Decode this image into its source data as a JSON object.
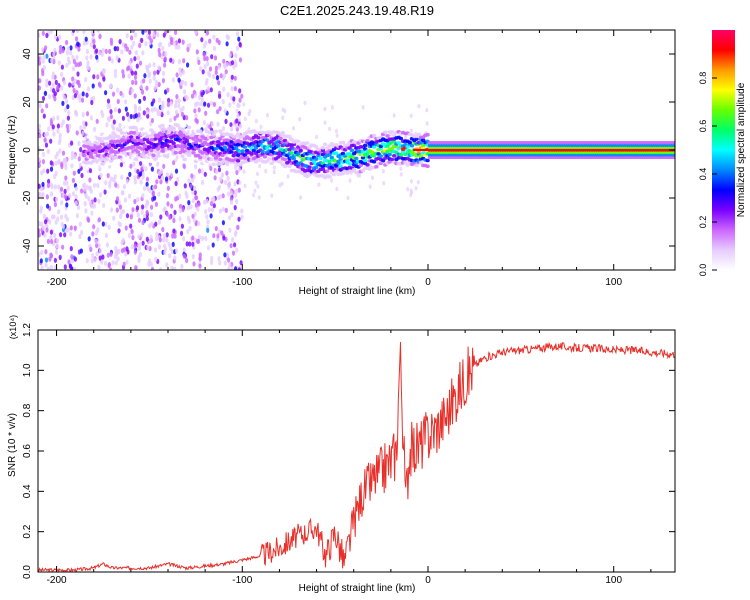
{
  "title": "C2E1.2025.243.19.48.R19",
  "colors": {
    "snr_line": "#e8302a",
    "axis": "#000000",
    "background": "#ffffff",
    "colormap": [
      "#ffffff",
      "#e6ccff",
      "#cc66ff",
      "#7a00ff",
      "#0000ff",
      "#0088ff",
      "#00ffff",
      "#00ff66",
      "#66ff00",
      "#ffff00",
      "#ff9900",
      "#ff0000",
      "#ff0066"
    ]
  },
  "chart_data": [
    {
      "type": "heatmap",
      "name": "spectrogram",
      "xlabel": "Height of straight line (km)",
      "ylabel": "Frequency (Hz)",
      "xlim": [
        -210,
        133
      ],
      "ylim": [
        -50,
        50
      ],
      "xticks": [
        -200,
        -100,
        0,
        100
      ],
      "xtick_labels": [
        "-200",
        "-100",
        "0",
        "100"
      ],
      "yticks": [
        -40,
        -20,
        0,
        20,
        40
      ],
      "ytick_labels": [
        "-40",
        "-20",
        "0",
        "20",
        "40"
      ],
      "colorbar": {
        "label": "Normalized spectral amplitude",
        "range": [
          0,
          1
        ],
        "ticks": [
          0.0,
          0.2,
          0.4,
          0.6,
          0.8
        ],
        "tick_labels": [
          "0.0",
          "0.2",
          "0.4",
          "0.6",
          "0.8"
        ]
      },
      "ridge": {
        "description_x": [
          -180,
          -160,
          -150,
          -140,
          -130,
          -120,
          -110,
          -100,
          -90,
          -80,
          -70,
          -60,
          -50,
          -40,
          -30,
          -20,
          -10,
          0,
          50,
          133
        ],
        "freq_hz": [
          -1,
          3,
          2,
          4,
          3,
          1,
          1,
          0,
          2,
          1,
          -3,
          -5,
          -4,
          -3,
          -1,
          1,
          0,
          0,
          0,
          0
        ],
        "amplitude": [
          0.25,
          0.3,
          0.3,
          0.35,
          0.3,
          0.3,
          0.4,
          0.45,
          0.5,
          0.55,
          0.6,
          0.62,
          0.65,
          0.7,
          0.75,
          0.8,
          0.85,
          0.95,
          0.95,
          0.95
        ]
      }
    },
    {
      "type": "line",
      "name": "snr",
      "xlabel": "Height of straight line (km)",
      "ylabel": "SNR (10 * v/v)",
      "y_multiplier": "(x10⁴)",
      "xlim": [
        -210,
        133
      ],
      "ylim": [
        0,
        1.2
      ],
      "xticks": [
        -200,
        -100,
        0,
        100
      ],
      "xtick_labels": [
        "-200",
        "-100",
        "0",
        "100"
      ],
      "yticks": [
        0.0,
        0.2,
        0.4,
        0.6,
        0.8,
        1.0,
        1.2
      ],
      "ytick_labels": [
        "0.0",
        "0.2",
        "0.4",
        "0.6",
        "0.8",
        "1.0",
        "1.2"
      ],
      "series": [
        {
          "name": "SNR",
          "x": [
            -210,
            -190,
            -180,
            -175,
            -170,
            -160,
            -150,
            -140,
            -130,
            -120,
            -110,
            -100,
            -90,
            -80,
            -75,
            -70,
            -65,
            -60,
            -55,
            -50,
            -45,
            -40,
            -35,
            -30,
            -25,
            -20,
            -17,
            -15,
            -12,
            -10,
            -5,
            0,
            5,
            10,
            15,
            20,
            25,
            30,
            40,
            50,
            60,
            70,
            80,
            90,
            100,
            110,
            120,
            133
          ],
          "y": [
            0.01,
            0.01,
            0.02,
            0.04,
            0.02,
            0.02,
            0.02,
            0.04,
            0.02,
            0.03,
            0.04,
            0.06,
            0.08,
            0.12,
            0.15,
            0.18,
            0.2,
            0.22,
            0.08,
            0.2,
            0.04,
            0.25,
            0.4,
            0.45,
            0.5,
            0.55,
            0.6,
            1.1,
            0.35,
            0.6,
            0.62,
            0.68,
            0.72,
            0.78,
            0.88,
            0.96,
            1.02,
            1.06,
            1.09,
            1.1,
            1.11,
            1.12,
            1.11,
            1.11,
            1.1,
            1.1,
            1.09,
            1.08
          ]
        }
      ]
    }
  ]
}
